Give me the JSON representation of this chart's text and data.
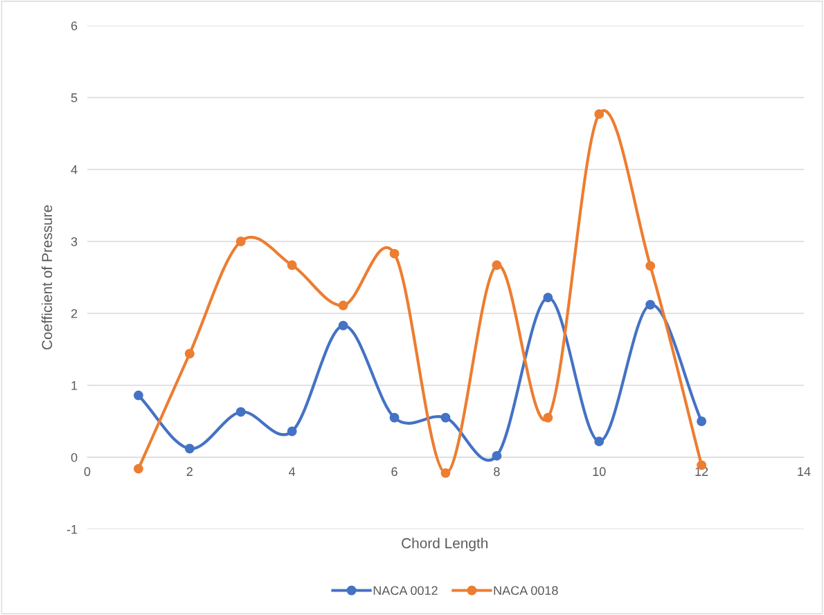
{
  "chart_data": {
    "type": "line",
    "xlabel": "Chord Length",
    "ylabel": "Coefficient of Pressure",
    "x": [
      1,
      2,
      3,
      4,
      5,
      6,
      7,
      8,
      9,
      10,
      11,
      12
    ],
    "series": [
      {
        "name": "NACA 0012",
        "color": "#4472c4",
        "values": [
          0.86,
          0.12,
          0.63,
          0.36,
          1.83,
          0.55,
          0.55,
          0.02,
          2.22,
          0.22,
          2.12,
          0.5
        ]
      },
      {
        "name": "NACA 0018",
        "color": "#ed7d31",
        "values": [
          -0.16,
          1.44,
          3.0,
          2.67,
          2.11,
          2.83,
          -0.22,
          2.67,
          0.55,
          4.77,
          2.66,
          -0.11
        ]
      }
    ],
    "xlim": [
      0,
      14
    ],
    "xticks": [
      0,
      2,
      4,
      6,
      8,
      10,
      12,
      14
    ],
    "ylim": [
      -1,
      6
    ],
    "yticks": [
      -1,
      0,
      1,
      2,
      3,
      4,
      5,
      6
    ],
    "grid": "y",
    "legend": "bottom",
    "marker": "circle",
    "line_style": "solid"
  }
}
